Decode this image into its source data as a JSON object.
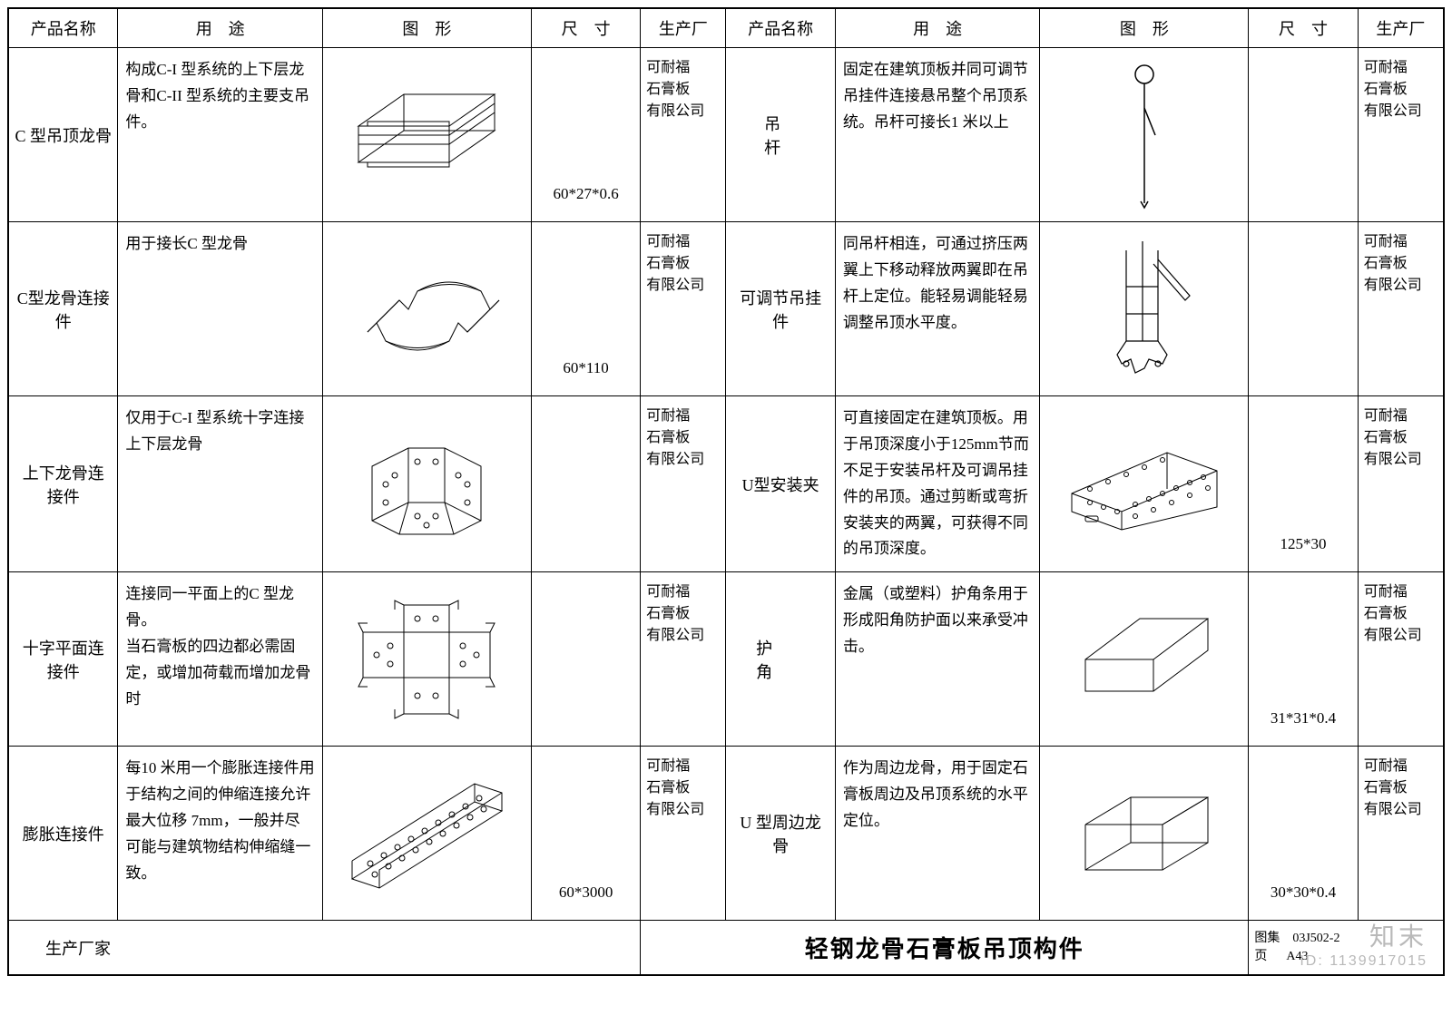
{
  "headers": {
    "name": "产品名称",
    "use": "用　途",
    "shape": "图　形",
    "size": "尺　寸",
    "mfr": "生产厂"
  },
  "manufacturer": "可耐福\n石膏板\n有限公司",
  "left_rows": [
    {
      "name": "C 型吊顶龙骨",
      "use": "构成C-I 型系统的上下层龙骨和C-II 型系统的主要支吊件。",
      "size": "60*27*0.6"
    },
    {
      "name": "C型龙骨连接件",
      "use": "用于接长C 型龙骨",
      "size": "60*110"
    },
    {
      "name": "上下龙骨连接件",
      "use": "仅用于C-I 型系统十字连接上下层龙骨",
      "size": ""
    },
    {
      "name": "十字平面连接件",
      "use": "连接同一平面上的C 型龙骨。\n当石膏板的四边都必需固定，或增加荷载而增加龙骨时",
      "size": ""
    },
    {
      "name": "膨胀连接件",
      "use": "每10 米用一个膨胀连接件用于结构之间的伸缩连接允许最大位移 7mm，一般并尽可能与建筑物结构伸缩缝一致。",
      "size": "60*3000"
    }
  ],
  "right_rows": [
    {
      "name": "吊　杆",
      "use": "固定在建筑顶板并同可调节吊挂件连接悬吊整个吊顶系统。吊杆可接长1 米以上",
      "size": ""
    },
    {
      "name": "可调节吊挂件",
      "use": "同吊杆相连，可通过挤压两翼上下移动释放两翼即在吊杆上定位。能轻易调能轻易调整吊顶水平度。",
      "size": ""
    },
    {
      "name": "U型安装夹",
      "use": "可直接固定在建筑顶板。用于吊顶深度小于125mm节而不足于安装吊杆及可调吊挂件的吊顶。通过剪断或弯折安装夹的两翼，可获得不同的吊顶深度。",
      "size": "125*30"
    },
    {
      "name": "护　　角",
      "use": "金属（或塑料）护角条用于形成阳角防护面以来承受冲击。",
      "size": "31*31*0.4"
    },
    {
      "name": "U 型周边龙骨",
      "use": "作为周边龙骨，用于固定石膏板周边及吊顶系统的水平定位。",
      "size": "30*30*0.4"
    }
  ],
  "footer": {
    "left": "生产厂家",
    "title": "轻钢龙骨石膏板吊顶构件",
    "meta_label1": "图集",
    "meta_val1": "03J502-2",
    "meta_label2": "页",
    "meta_val2": "A43"
  },
  "col_widths": {
    "name": 100,
    "use": 200,
    "shape": 200,
    "size": 100,
    "mfr": 80
  },
  "watermark": {
    "line1": "知末",
    "line2": "ID: 1139917015"
  },
  "colors": {
    "line": "#000000",
    "bg": "#ffffff",
    "wm": "#b9b9b9"
  }
}
